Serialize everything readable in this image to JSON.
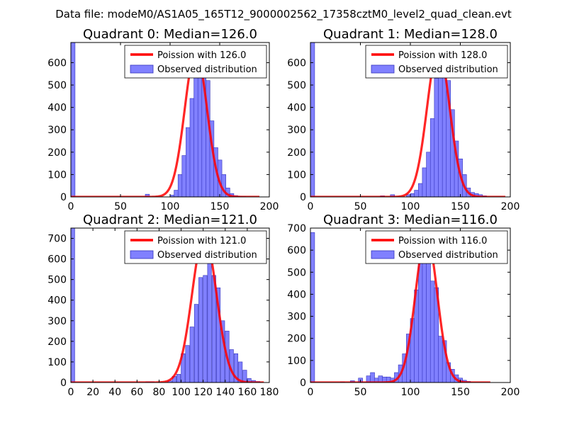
{
  "suptitle": "Data file: modeM0/AS1A05_165T12_9000002562_17358cztM0_level2_quad_clean.evt",
  "colors": {
    "bar_fill": "#8080ff",
    "bar_edge": "#3333bb",
    "curve": "#ff0000",
    "curve_alpha": "#ff8080",
    "frame": "#000000"
  },
  "legend_labels": {
    "observed": "Observed distribution"
  },
  "chart_data": [
    {
      "type": "bar",
      "title": "Quadrant 0: Median=126.0",
      "median": 126.0,
      "legend_poisson": "Poission with 126.0",
      "xlim": [
        0,
        200
      ],
      "ylim": [
        0,
        690
      ],
      "xticks": [
        0,
        50,
        100,
        150,
        200
      ],
      "yticks": [
        0,
        100,
        200,
        300,
        400,
        500,
        600
      ],
      "bin_width": 4.2,
      "bins": [
        [
          0,
          690
        ],
        [
          75,
          12
        ],
        [
          100,
          8
        ],
        [
          104,
          30
        ],
        [
          108,
          100
        ],
        [
          112,
          185
        ],
        [
          116,
          310
        ],
        [
          120,
          440
        ],
        [
          124,
          590
        ],
        [
          128,
          620
        ],
        [
          132,
          600
        ],
        [
          136,
          520
        ],
        [
          140,
          340
        ],
        [
          144,
          220
        ],
        [
          148,
          165
        ],
        [
          152,
          100
        ],
        [
          156,
          40
        ],
        [
          160,
          15
        ],
        [
          164,
          6
        ],
        [
          168,
          3
        ],
        [
          172,
          2
        ],
        [
          176,
          1
        ]
      ],
      "poisson_x_range": [
        0,
        190
      ],
      "poisson_peak": 650,
      "poisson_sigma": 11.2
    },
    {
      "type": "bar",
      "title": "Quadrant 1: Median=128.0",
      "median": 128.0,
      "legend_poisson": "Poission with 128.0",
      "xlim": [
        0,
        200
      ],
      "ylim": [
        0,
        690
      ],
      "xticks": [
        0,
        50,
        100,
        150,
        200
      ],
      "yticks": [
        0,
        100,
        200,
        300,
        400,
        500,
        600
      ],
      "bin_width": 4.2,
      "bins": [
        [
          0,
          690
        ],
        [
          70,
          5
        ],
        [
          80,
          10
        ],
        [
          96,
          10
        ],
        [
          100,
          15
        ],
        [
          104,
          30
        ],
        [
          108,
          60
        ],
        [
          112,
          130
        ],
        [
          116,
          200
        ],
        [
          120,
          350
        ],
        [
          124,
          530
        ],
        [
          128,
          590
        ],
        [
          132,
          640
        ],
        [
          136,
          520
        ],
        [
          140,
          390
        ],
        [
          144,
          250
        ],
        [
          148,
          170
        ],
        [
          152,
          100
        ],
        [
          156,
          40
        ],
        [
          160,
          20
        ],
        [
          164,
          15
        ],
        [
          168,
          10
        ],
        [
          172,
          5
        ]
      ],
      "poisson_x_range": [
        0,
        195
      ],
      "poisson_peak": 660,
      "poisson_sigma": 11.3
    },
    {
      "type": "bar",
      "title": "Quadrant 2: Median=121.0",
      "median": 121.0,
      "legend_poisson": "Poission with 121.0",
      "xlim": [
        0,
        180
      ],
      "ylim": [
        0,
        750
      ],
      "xticks": [
        0,
        20,
        40,
        60,
        80,
        100,
        120,
        140,
        160,
        180
      ],
      "yticks": [
        0,
        100,
        200,
        300,
        400,
        500,
        600,
        700
      ],
      "bin_width": 3.5,
      "bins": [
        [
          0,
          750
        ],
        [
          68,
          4
        ],
        [
          72,
          4
        ],
        [
          88,
          8
        ],
        [
          92,
          30
        ],
        [
          96,
          40
        ],
        [
          100,
          140
        ],
        [
          104,
          180
        ],
        [
          108,
          270
        ],
        [
          112,
          380
        ],
        [
          116,
          510
        ],
        [
          120,
          520
        ],
        [
          124,
          650
        ],
        [
          128,
          520
        ],
        [
          132,
          460
        ],
        [
          136,
          300
        ],
        [
          140,
          250
        ],
        [
          144,
          160
        ],
        [
          148,
          140
        ],
        [
          152,
          100
        ],
        [
          156,
          60
        ],
        [
          160,
          20
        ],
        [
          164,
          10
        ],
        [
          168,
          5
        ]
      ],
      "poisson_x_range": [
        0,
        175
      ],
      "poisson_peak": 715,
      "poisson_sigma": 11.0
    },
    {
      "type": "bar",
      "title": "Quadrant 3: Median=116.0",
      "median": 116.0,
      "legend_poisson": "Poission with 116.0",
      "xlim": [
        0,
        200
      ],
      "ylim": [
        0,
        700
      ],
      "xticks": [
        0,
        50,
        100,
        150,
        200
      ],
      "yticks": [
        0,
        100,
        200,
        300,
        400,
        500,
        600,
        700
      ],
      "bin_width": 4.2,
      "bins": [
        [
          0,
          680
        ],
        [
          30,
          3
        ],
        [
          40,
          8
        ],
        [
          48,
          20
        ],
        [
          56,
          30
        ],
        [
          60,
          45
        ],
        [
          64,
          20
        ],
        [
          68,
          30
        ],
        [
          72,
          25
        ],
        [
          76,
          25
        ],
        [
          80,
          20
        ],
        [
          84,
          45
        ],
        [
          88,
          80
        ],
        [
          92,
          130
        ],
        [
          96,
          220
        ],
        [
          100,
          290
        ],
        [
          104,
          420
        ],
        [
          108,
          560
        ],
        [
          112,
          600
        ],
        [
          116,
          570
        ],
        [
          120,
          460
        ],
        [
          124,
          430
        ],
        [
          128,
          210
        ],
        [
          132,
          190
        ],
        [
          136,
          90
        ],
        [
          140,
          60
        ],
        [
          144,
          35
        ],
        [
          148,
          20
        ],
        [
          152,
          10
        ],
        [
          156,
          5
        ]
      ],
      "poisson_x_range": [
        0,
        180
      ],
      "poisson_peak": 670,
      "poisson_sigma": 10.8
    }
  ]
}
